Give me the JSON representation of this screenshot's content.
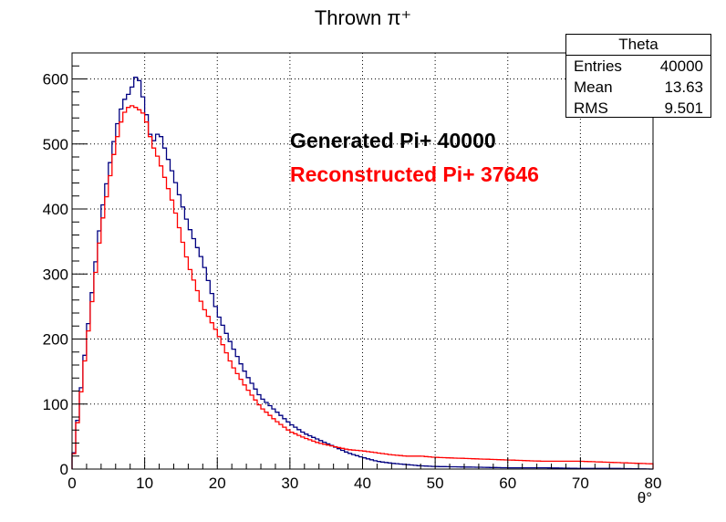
{
  "chart_data": {
    "type": "histogram",
    "title": "Thrown π⁺",
    "xlabel": "θ°",
    "ylabel": "",
    "xlim": [
      0,
      80
    ],
    "ylim": [
      0,
      640
    ],
    "xticks": [
      0,
      10,
      20,
      30,
      40,
      50,
      60,
      70,
      80
    ],
    "yticks": [
      0,
      100,
      200,
      300,
      400,
      500,
      600
    ],
    "grid": true,
    "series": [
      {
        "name": "Generated Pi+ 40000",
        "color": "#000080",
        "x": [
          0,
          2,
          4,
          6,
          7,
          8,
          9,
          10,
          11,
          12,
          13,
          14,
          16,
          18,
          20,
          22,
          24,
          26,
          28,
          30,
          32,
          34,
          36,
          38,
          40,
          42,
          44,
          46,
          48,
          50,
          55,
          60,
          65,
          70,
          75,
          80
        ],
        "values": [
          0,
          200,
          390,
          520,
          565,
          580,
          610,
          560,
          500,
          520,
          485,
          450,
          375,
          320,
          240,
          190,
          145,
          110,
          90,
          70,
          55,
          45,
          35,
          25,
          18,
          12,
          9,
          7,
          5,
          4,
          3,
          2,
          2,
          1,
          1,
          0
        ]
      },
      {
        "name": "Reconstructed Pi+ 37646",
        "color": "#ff0000",
        "x": [
          0,
          2,
          4,
          6,
          7,
          8,
          9,
          10,
          11,
          12,
          13,
          14,
          16,
          18,
          20,
          22,
          24,
          26,
          28,
          30,
          32,
          34,
          36,
          38,
          40,
          42,
          44,
          46,
          48,
          50,
          55,
          60,
          65,
          70,
          75,
          80
        ],
        "values": [
          0,
          190,
          370,
          500,
          545,
          560,
          555,
          545,
          500,
          475,
          440,
          405,
          315,
          250,
          210,
          160,
          125,
          95,
          75,
          58,
          48,
          40,
          35,
          30,
          28,
          25,
          22,
          20,
          20,
          18,
          16,
          14,
          12,
          12,
          10,
          8
        ]
      }
    ]
  },
  "stats": {
    "title": "Theta",
    "rows": [
      {
        "label": "Entries",
        "value": "40000"
      },
      {
        "label": "Mean",
        "value": "13.63"
      },
      {
        "label": "RMS",
        "value": "9.501"
      }
    ]
  },
  "legend": {
    "generated": "Generated Pi+ 40000",
    "reconstructed": "Reconstructed Pi+ 37646"
  },
  "colors": {
    "generated_text": "#000000",
    "reconstructed_text": "#ff0000"
  }
}
